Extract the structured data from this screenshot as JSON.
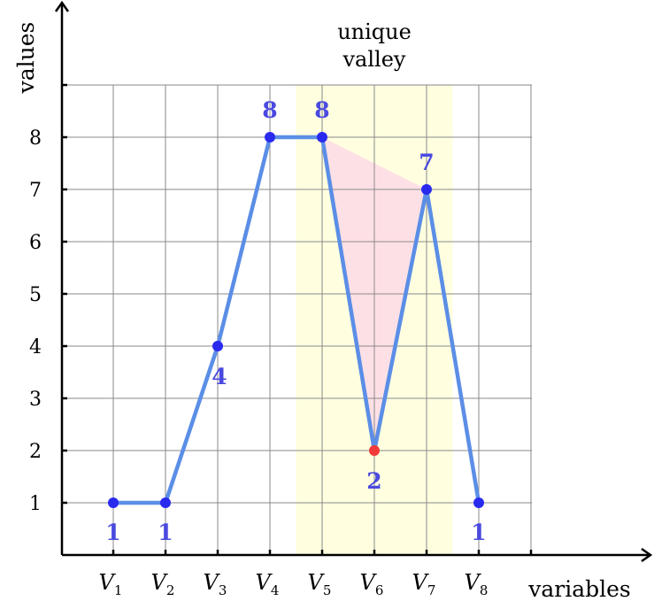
{
  "chart_data": {
    "type": "line",
    "xlabel": "variables",
    "ylabel": "values",
    "categories": [
      "V1",
      "V2",
      "V3",
      "V4",
      "V5",
      "V6",
      "V7",
      "V8"
    ],
    "category_labels": [
      {
        "base": "V",
        "sub": "1"
      },
      {
        "base": "V",
        "sub": "2"
      },
      {
        "base": "V",
        "sub": "3"
      },
      {
        "base": "V",
        "sub": "4"
      },
      {
        "base": "V",
        "sub": "5"
      },
      {
        "base": "V",
        "sub": "6"
      },
      {
        "base": "V",
        "sub": "7"
      },
      {
        "base": "V",
        "sub": "8"
      }
    ],
    "values": [
      1,
      1,
      4,
      8,
      8,
      2,
      7,
      1
    ],
    "value_labels": [
      "1",
      "1",
      "4",
      "8",
      "8",
      "2",
      "7",
      "1"
    ],
    "yticks": [
      "1",
      "2",
      "3",
      "4",
      "5",
      "6",
      "7",
      "8"
    ],
    "ylim": [
      0,
      9
    ],
    "grid": true,
    "highlight": {
      "label_lines": [
        "unique",
        "valley"
      ],
      "from_index": 4,
      "to_index": 6,
      "valley_index": 5
    },
    "colors": {
      "line": "#5b8ee6",
      "point": "#2a2aef",
      "valley_point": "#f23a3a",
      "value_label": "#4a4ae0",
      "highlight_band": "#ffffe0",
      "valley_fill": "#fde0e6",
      "grid": "#8a8a8a",
      "axis": "#000000"
    }
  }
}
